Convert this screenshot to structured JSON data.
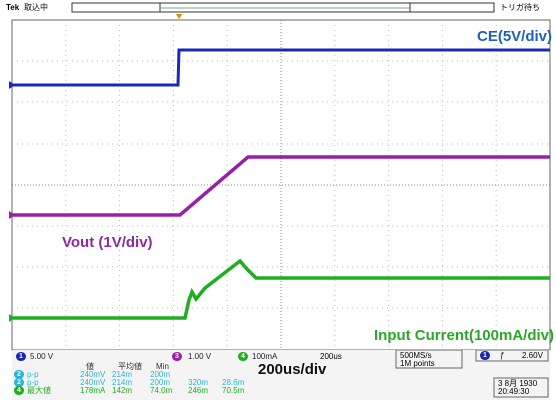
{
  "header": {
    "brand": "Tek",
    "status": "取込中",
    "trigger_state": "トリガ待ち"
  },
  "annotations": {
    "ce": "CE(5V/div)",
    "vout": "Vout (1V/div)",
    "current": "Input Current(100mA/div)",
    "timebase": "200us/div"
  },
  "channels": [
    {
      "id": "1",
      "scale": "5.00 V"
    },
    {
      "id": "3",
      "scale": "1.00 V"
    },
    {
      "id": "4",
      "scale": "100mA"
    }
  ],
  "horizontal": "200us",
  "acquisition": [
    "500MS/s",
    "1M points"
  ],
  "trigger": {
    "source": "1",
    "slope": "ƒ",
    "level": "2.60V"
  },
  "measurements": {
    "headers": [
      "値",
      "平均値",
      "Min"
    ],
    "rows": [
      {
        "ch": "2",
        "name": "p-p",
        "cells": [
          "240mV",
          "214m",
          "200m"
        ]
      },
      {
        "ch": "2",
        "name": "p-p",
        "cells": [
          "240mV",
          "214m",
          "200m",
          "320m",
          "28.6m"
        ]
      },
      {
        "ch": "4",
        "name": "最大値",
        "cells": [
          "178mA",
          "142m",
          "74.0m",
          "246m",
          "70.5m"
        ]
      }
    ]
  },
  "datetime": [
    "3 8月 1930",
    "20:49:30"
  ]
}
